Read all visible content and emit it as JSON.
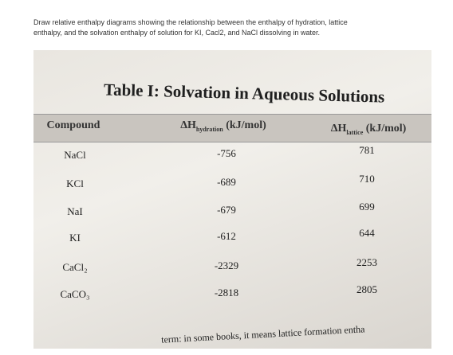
{
  "question": {
    "text_line_1": "Draw relative enthalpy diagrams showing the relationship between the enthalpy of hydration, lattice",
    "text_line_2": "enthalpy, and the solvation enthalpy of solution for KI, Cacl2, and NaCl dissolving in water."
  },
  "table": {
    "title": "Table I: Solvation in Aqueous Solutions",
    "headers": [
      {
        "text": "Compound"
      },
      {
        "symbol": "ΔH",
        "sub": "hydration",
        "unit": "(kJ/mol)"
      },
      {
        "symbol": "ΔH",
        "sub": "lattice",
        "unit": "(kJ/mol)"
      }
    ],
    "rows": [
      [
        "NaCl",
        "-756",
        "781"
      ],
      [
        "KCl",
        "-689",
        "710"
      ],
      [
        "NaI",
        "-679",
        "699"
      ],
      [
        "KI",
        "-612",
        "644"
      ],
      [
        "CaCl₂",
        "-2329",
        "2253"
      ],
      [
        "CaCO₃",
        "-2818",
        "2805"
      ]
    ],
    "footer": "term: in some books, it means lattice formation entha"
  }
}
